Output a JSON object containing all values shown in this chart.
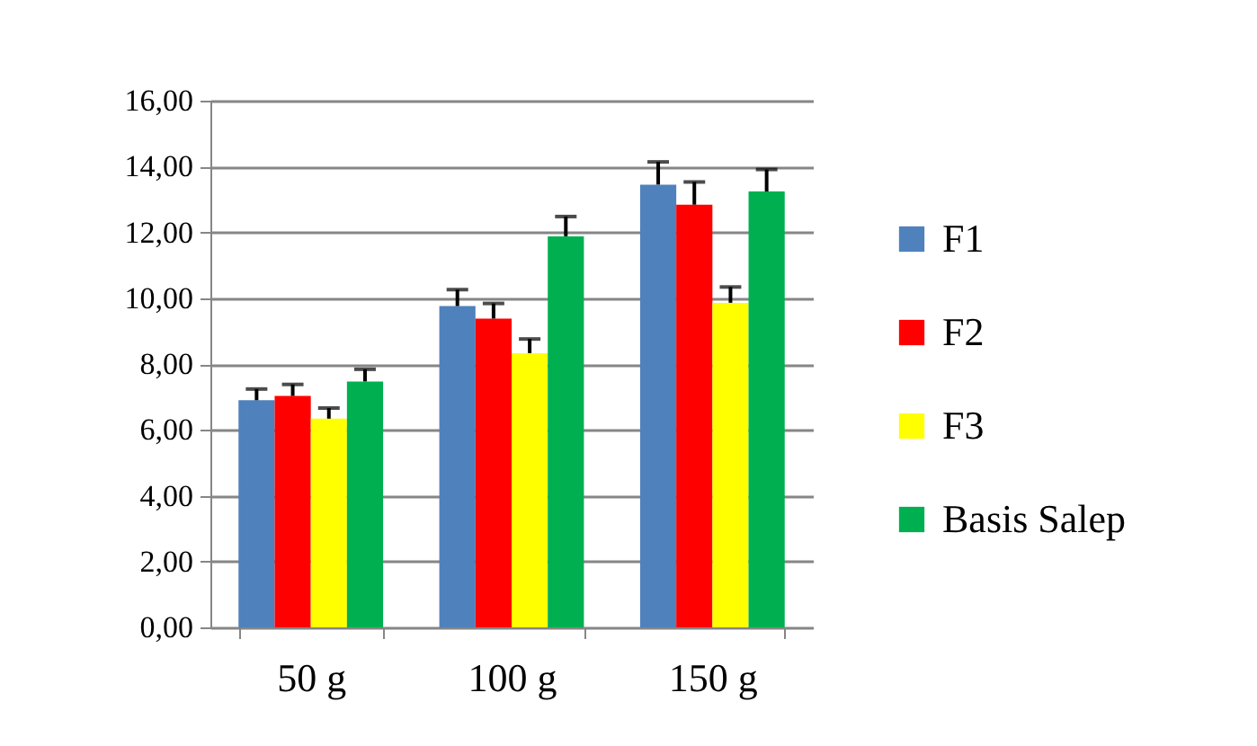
{
  "chart_data": {
    "type": "bar",
    "categories": [
      "50 g",
      "100 g",
      "150 g"
    ],
    "series": [
      {
        "name": "F1",
        "color": "#4f81bd",
        "values": [
          6.9,
          9.76,
          13.45
        ],
        "errors": [
          [
            6.9,
            7.24
          ],
          [
            9.76,
            10.26
          ],
          [
            13.45,
            14.14
          ]
        ]
      },
      {
        "name": "F2",
        "color": "#ff0000",
        "values": [
          7.03,
          9.38,
          12.84
        ],
        "errors": [
          [
            7.03,
            7.38
          ],
          [
            9.38,
            9.84
          ],
          [
            12.84,
            13.53
          ]
        ]
      },
      {
        "name": "F3",
        "color": "#ffff00",
        "values": [
          6.34,
          8.33,
          9.86
        ],
        "errors": [
          [
            6.34,
            6.66
          ],
          [
            8.33,
            8.76
          ],
          [
            9.86,
            10.34
          ]
        ]
      },
      {
        "name": "Basis Salep",
        "color": "#00b050",
        "values": [
          7.47,
          11.88,
          13.24
        ],
        "errors": [
          [
            7.47,
            7.84
          ],
          [
            11.88,
            12.48
          ],
          [
            13.24,
            13.91
          ]
        ]
      }
    ],
    "ylim": [
      0,
      16
    ],
    "yticks": [
      {
        "value": 0,
        "label": "0,00"
      },
      {
        "value": 2,
        "label": "2,00"
      },
      {
        "value": 4,
        "label": "4,00"
      },
      {
        "value": 6,
        "label": "6,00"
      },
      {
        "value": 8,
        "label": "8,00"
      },
      {
        "value": 10,
        "label": "10,00"
      },
      {
        "value": 12,
        "label": "12,00"
      },
      {
        "value": 14,
        "label": "14,00"
      },
      {
        "value": 16,
        "label": "16,00"
      }
    ],
    "grid": "y",
    "legend": "right"
  }
}
